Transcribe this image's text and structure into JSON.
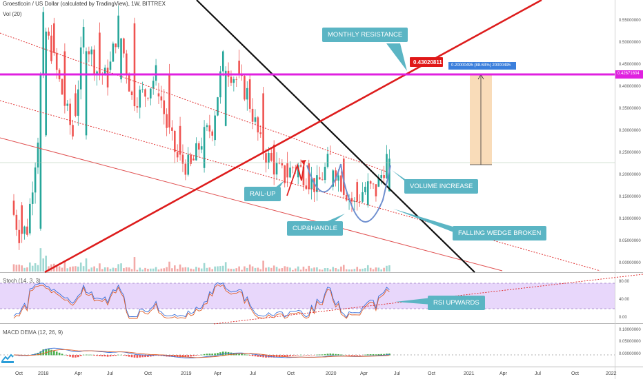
{
  "header": {
    "title": "Groestlcoin / US Dollar (calculated by TradingView), 1W, BITTREX",
    "volume_label": "Vol (20)"
  },
  "panels": {
    "stoch_label": "Stoch (14, 3, 3)",
    "macd_label": "MACD DEMA (12, 26, 9)"
  },
  "annotations": {
    "monthly_resistance": "MONTHLY RESISTANCE",
    "volume_increase": "VOLUME INCREASE",
    "rail_up": "RAIL-UP",
    "cup_handle": "CUP&HANDLE",
    "falling_wedge": "FALLING WEDGE BROKEN",
    "rsi_upwards": "RSI UPWARDS"
  },
  "price_tags": {
    "target": "0.43020811",
    "current": "0.42671604",
    "measure": "0.20000495 (88.63%) 20000495"
  },
  "axes": {
    "price_ticks": [
      "0.55000000",
      "0.50000000",
      "0.45000000",
      "0.40000000",
      "0.35000000",
      "0.30000000",
      "0.25000000",
      "0.20000000",
      "0.15000000",
      "0.10000000",
      "0.05000000",
      "0.00000000"
    ],
    "stoch_ticks": [
      "80.00",
      "40.00",
      "0.00"
    ],
    "macd_ticks": [
      "0.10000000",
      "0.05000000",
      "0.00000000"
    ],
    "time_ticks": [
      "Oct",
      "2018",
      "Apr",
      "Jul",
      "Oct",
      "2019",
      "Apr",
      "Jul",
      "Oct",
      "2020",
      "Apr",
      "Jul",
      "Oct",
      "2021",
      "Apr",
      "Jul",
      "Oct",
      "2022"
    ]
  },
  "colors": {
    "up": "#26a69a",
    "down": "#ef5350",
    "magenta": "#e020e0",
    "resistance": "#dd1c1c",
    "callout": "#5bb5c4"
  },
  "chart_data": {
    "type": "candlestick",
    "title": "Groestlcoin / US Dollar (calculated by TradingView), 1W, BITTREX",
    "ylim": [
      0.0,
      0.57
    ],
    "grid": false,
    "x_range": [
      "2017-09-25",
      "2022-01-01"
    ],
    "candles_approx": [
      [
        "2017-09-25",
        0.14,
        0.17,
        0.12,
        0.13
      ],
      [
        "2017-10-16",
        0.13,
        0.13,
        0.06,
        0.07
      ],
      [
        "2017-11-06",
        0.07,
        0.09,
        0.06,
        0.08
      ],
      [
        "2017-12-04",
        0.08,
        0.31,
        0.08,
        0.28
      ],
      [
        "2017-12-18",
        0.28,
        0.56,
        0.26,
        0.52
      ],
      [
        "2018-01-08",
        0.52,
        0.56,
        0.42,
        0.46
      ],
      [
        "2018-02-05",
        0.46,
        0.5,
        0.32,
        0.37
      ],
      [
        "2018-03-05",
        0.37,
        0.42,
        0.25,
        0.28
      ],
      [
        "2018-04-02",
        0.28,
        0.56,
        0.27,
        0.5
      ],
      [
        "2018-05-07",
        0.5,
        0.53,
        0.38,
        0.42
      ],
      [
        "2018-06-04",
        0.42,
        0.46,
        0.36,
        0.4
      ],
      [
        "2018-07-02",
        0.4,
        0.56,
        0.39,
        0.52
      ],
      [
        "2018-08-06",
        0.52,
        0.54,
        0.33,
        0.36
      ],
      [
        "2018-09-10",
        0.36,
        0.4,
        0.32,
        0.37
      ],
      [
        "2018-10-08",
        0.37,
        0.46,
        0.35,
        0.41
      ],
      [
        "2018-11-05",
        0.41,
        0.42,
        0.25,
        0.3
      ],
      [
        "2018-12-03",
        0.3,
        0.31,
        0.2,
        0.23
      ],
      [
        "2019-01-07",
        0.23,
        0.26,
        0.19,
        0.21
      ],
      [
        "2019-02-04",
        0.21,
        0.29,
        0.2,
        0.27
      ],
      [
        "2019-03-04",
        0.27,
        0.34,
        0.23,
        0.3
      ],
      [
        "2019-04-01",
        0.3,
        0.48,
        0.29,
        0.44
      ],
      [
        "2019-05-06",
        0.44,
        0.48,
        0.34,
        0.4
      ],
      [
        "2019-06-03",
        0.4,
        0.45,
        0.33,
        0.37
      ],
      [
        "2019-07-08",
        0.37,
        0.38,
        0.24,
        0.26
      ],
      [
        "2019-08-05",
        0.26,
        0.27,
        0.21,
        0.22
      ],
      [
        "2019-09-09",
        0.22,
        0.23,
        0.18,
        0.19
      ],
      [
        "2019-10-07",
        0.19,
        0.23,
        0.18,
        0.22
      ],
      [
        "2019-11-04",
        0.22,
        0.23,
        0.17,
        0.19
      ],
      [
        "2019-12-02",
        0.19,
        0.2,
        0.16,
        0.17
      ],
      [
        "2020-01-06",
        0.17,
        0.26,
        0.16,
        0.23
      ],
      [
        "2020-02-03",
        0.23,
        0.24,
        0.17,
        0.18
      ],
      [
        "2020-03-09",
        0.18,
        0.19,
        0.08,
        0.13
      ],
      [
        "2020-04-06",
        0.13,
        0.18,
        0.12,
        0.17
      ],
      [
        "2020-05-04",
        0.17,
        0.19,
        0.14,
        0.16
      ],
      [
        "2020-06-01",
        0.16,
        0.25,
        0.16,
        0.23
      ]
    ]
  }
}
